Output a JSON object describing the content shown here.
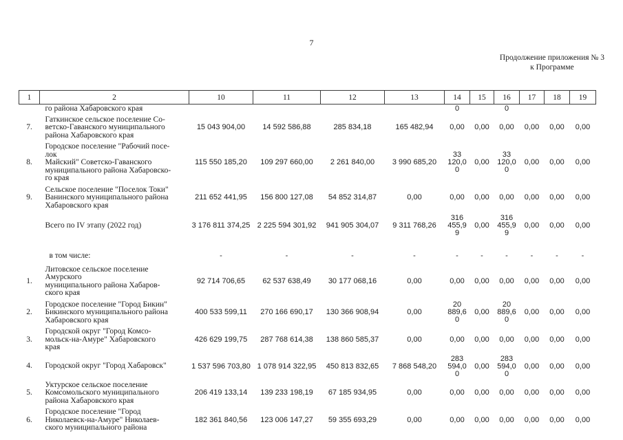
{
  "page": {
    "number": "7",
    "appendix_line1": "Продолжение приложения № 3",
    "appendix_line2": "к Программе"
  },
  "table": {
    "columns": [
      "1",
      "2",
      "10",
      "11",
      "12",
      "13",
      "14",
      "15",
      "16",
      "17",
      "18",
      "19"
    ],
    "rows": [
      {
        "kind": "continuation",
        "num": "",
        "name": "го района Хабаровского края",
        "values": [
          "",
          "",
          "",
          "",
          "0",
          "",
          "0",
          "",
          "",
          ""
        ]
      },
      {
        "kind": "item",
        "num": "7.",
        "name": "Гаткинское сельское поселение Со-\nветско-Гаванского муниципального\nрайона Хабаровского края",
        "values": [
          "15 043 904,00",
          "14 592 586,88",
          "285 834,18",
          "165 482,94",
          "0,00",
          "0,00",
          "0,00",
          "0,00",
          "0,00",
          "0,00"
        ]
      },
      {
        "kind": "item",
        "num": "8.",
        "name": "Городское поселение \"Рабочий посе-\nлок\nМайский\" Советско-Гаванского\nмуниципального района Хабаровско-\nго края",
        "values": [
          "115 550 185,20",
          "109 297 660,00",
          "2 261 840,00",
          "3 990 685,20",
          "33\n120,0\n0",
          "0,00",
          "33\n120,0\n0",
          "0,00",
          "0,00",
          "0,00"
        ]
      },
      {
        "kind": "item",
        "num": "9.",
        "name": "Сельское поселение \"Поселок Токи\"\nВанинского муниципального района\nХабаровского края",
        "values": [
          "211 652 441,95",
          "156 800 127,08",
          "54 852 314,87",
          "0,00",
          "0,00",
          "0,00",
          "0,00",
          "0,00",
          "0,00",
          "0,00"
        ]
      },
      {
        "kind": "total",
        "num": "",
        "name": "Всего по IV этапу (2022 год)",
        "values": [
          "3 176 811 374,25",
          "2 225 594 301,92",
          "941 905 304,07",
          "9 311 768,26",
          "316\n455,9\n9",
          "0,00",
          "316\n455,9\n9",
          "0,00",
          "0,00",
          "0,00"
        ]
      },
      {
        "kind": "subheading",
        "num": "",
        "name": "в том числе:",
        "values": [
          "-",
          "-",
          "-",
          "-",
          "-",
          "-",
          "-",
          "-",
          "-",
          "-"
        ]
      },
      {
        "kind": "item",
        "num": "1.",
        "name": "Литовское сельское поселение\nАмурского\nмуниципального района Хабаров-\nского края",
        "values": [
          "92 714 706,65",
          "62 537 638,49",
          "30 177 068,16",
          "0,00",
          "0,00",
          "0,00",
          "0,00",
          "0,00",
          "0,00",
          "0,00"
        ]
      },
      {
        "kind": "item",
        "num": "2.",
        "name": "Городское поселение \"Город Бикин\"\nБикинского муниципального района\nХабаровского края",
        "values": [
          "400 533 599,11",
          "270 166 690,17",
          "130 366 908,94",
          "0,00",
          "20\n889,6\n0",
          "0,00",
          "20\n889,6\n0",
          "0,00",
          "0,00",
          "0,00"
        ]
      },
      {
        "kind": "item",
        "num": "3.",
        "name": "Городской округ \"Город Комсо-\nмольск-на-Амуре\" Хабаровского\nкрая",
        "values": [
          "426 629 199,75",
          "287 768 614,38",
          "138 860 585,37",
          "0,00",
          "0,00",
          "0,00",
          "0,00",
          "0,00",
          "0,00",
          "0,00"
        ]
      },
      {
        "kind": "item",
        "num": "4.",
        "name": "Городской округ \"Город Хабаровск\"",
        "values": [
          "1 537 596 703,80",
          "1 078 914 322,95",
          "450 813 832,65",
          "7 868 548,20",
          "283\n594,0\n0",
          "0,00",
          "283\n594,0\n0",
          "0,00",
          "0,00",
          "0,00"
        ]
      },
      {
        "kind": "item",
        "num": "5.",
        "name": "Уктурское сельское поселение\nКомсомольского муниципального\nрайона Хабаровского края",
        "values": [
          "206 419 133,14",
          "139 233 198,19",
          "67 185 934,95",
          "0,00",
          "0,00",
          "0,00",
          "0,00",
          "0,00",
          "0,00",
          "0,00"
        ]
      },
      {
        "kind": "item",
        "num": "6.",
        "name": "Городское поселение \"Город\nНиколаевск-на-Амуре\" Николаев-\nского муниципального района",
        "values": [
          "182 361 840,56",
          "123 006 147,27",
          "59 355 693,29",
          "0,00",
          "0,00",
          "0,00",
          "0,00",
          "0,00",
          "0,00",
          "0,00"
        ]
      }
    ]
  }
}
